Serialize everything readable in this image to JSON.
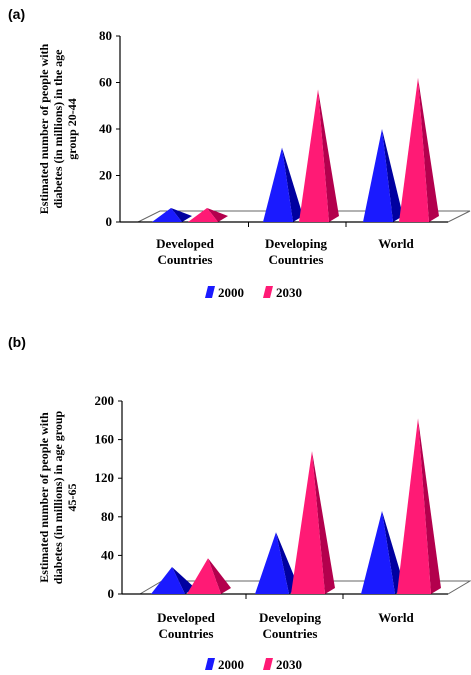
{
  "panels": [
    {
      "label": "(a)"
    },
    {
      "label": "(b)"
    }
  ],
  "colors": {
    "s2000": "#1a1aff",
    "s2000_dark": "#0000a0",
    "s2030": "#ff1a75",
    "s2030_dark": "#b3004d"
  },
  "chart_data": [
    {
      "type": "bar",
      "categories": [
        [
          "Developed",
          "Countries"
        ],
        [
          "Developing",
          "Countries"
        ],
        [
          "World"
        ]
      ],
      "series": [
        {
          "name": "2000",
          "values": [
            6,
            32,
            40
          ]
        },
        {
          "name": "2030",
          "values": [
            6,
            57,
            62
          ]
        }
      ],
      "ylabel": [
        "Estimated number of people with",
        "diabetes (in millions) in the age",
        "group 20-44"
      ],
      "ylim": [
        0,
        80
      ],
      "yticks": [
        0,
        20,
        40,
        60,
        80
      ],
      "legend": "bottom"
    },
    {
      "type": "bar",
      "categories": [
        [
          "Developed",
          "Countries"
        ],
        [
          "Developing",
          "Countries"
        ],
        [
          "World"
        ]
      ],
      "series": [
        {
          "name": "2000",
          "values": [
            28,
            64,
            86
          ]
        },
        {
          "name": "2030",
          "values": [
            37,
            148,
            182
          ]
        }
      ],
      "ylabel": [
        "Estimated number of people with",
        "diabetes (in millions) in age group",
        "45-65"
      ],
      "ylim": [
        0,
        200
      ],
      "yticks": [
        0,
        40,
        80,
        120,
        160,
        200
      ],
      "legend": "bottom"
    }
  ]
}
